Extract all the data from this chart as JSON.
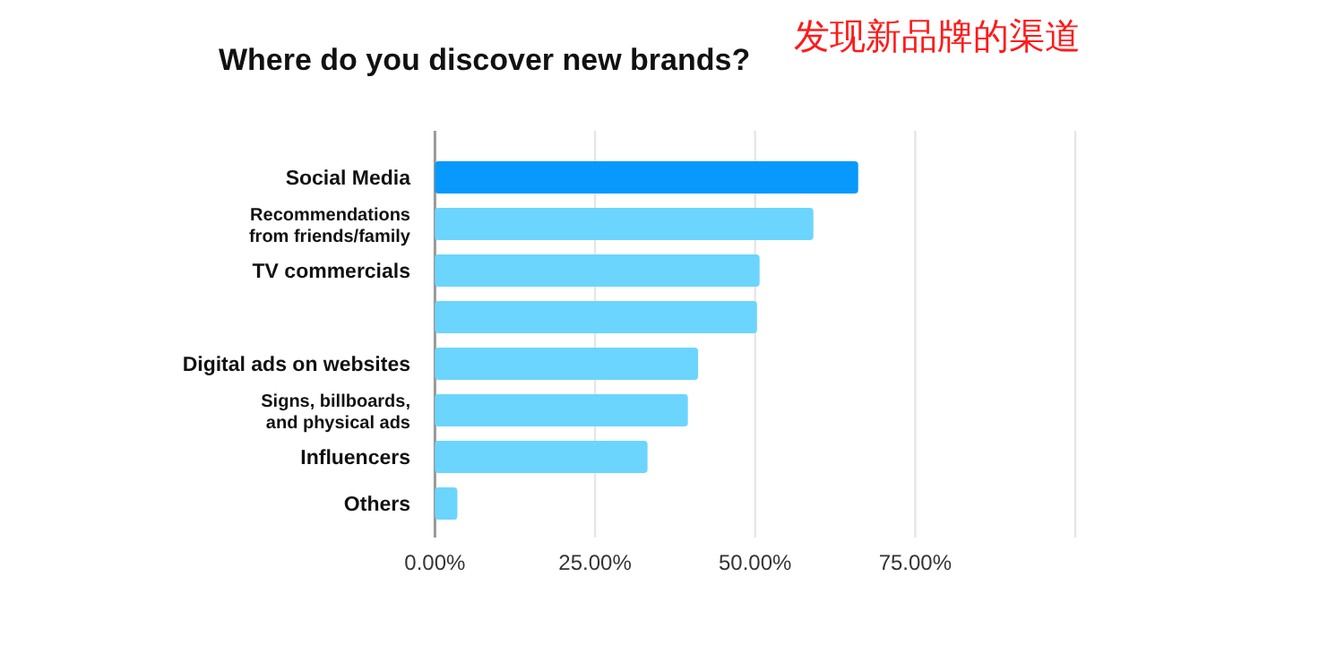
{
  "chart_data": {
    "type": "bar",
    "orientation": "horizontal",
    "title": "Where do you discover new brands?",
    "annotations": [
      "发现新品牌的渠道"
    ],
    "categories": [
      "Social Media",
      "Recommendations from friends/family",
      "TV commercials",
      null,
      "Digital ads on websites",
      "Signs, billboards, and physical ads",
      "Influencers",
      "Others"
    ],
    "values": [
      66.1,
      59.1,
      50.7,
      50.3,
      41.1,
      39.5,
      33.2,
      3.5
    ],
    "colors": [
      "#0799fb",
      "#6bd5fd",
      "#6bd5fd",
      "#6bd5fd",
      "#6bd5fd",
      "#6bd5fd",
      "#6bd5fd",
      "#6bd5fd"
    ],
    "xlim": [
      0,
      100
    ],
    "xticks": [
      {
        "value": 0,
        "label": "0.00%"
      },
      {
        "value": 25,
        "label": "25.00%"
      },
      {
        "value": 50,
        "label": "50.00%"
      },
      {
        "value": 75,
        "label": "75.00%"
      },
      {
        "value": 100,
        "label": null
      }
    ],
    "grid": "x"
  }
}
